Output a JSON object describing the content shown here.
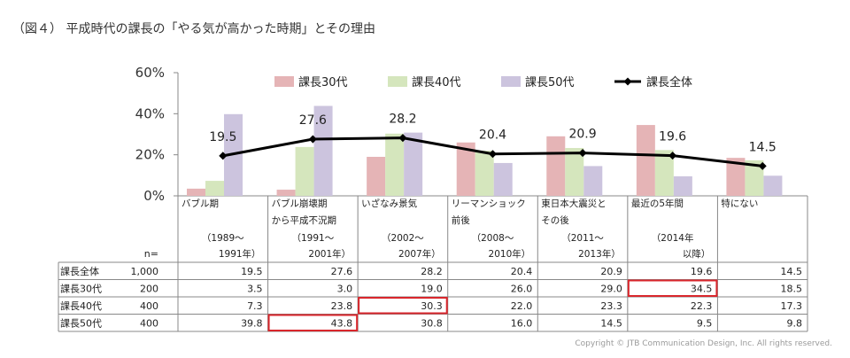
{
  "title": "（図４） 平成時代の課長の「やる気が高かった時期」とその理由",
  "copyright": "Copyright © JTB Communication Design, Inc. All rights reserved.",
  "chart_data": {
    "type": "bar",
    "overlay": "line",
    "ylim": [
      0,
      60
    ],
    "yticks": [
      "0%",
      "20%",
      "40%",
      "60%"
    ],
    "grid": false,
    "legend_position": "top",
    "n_label": "n=",
    "categories": [
      [
        "バブル期",
        "",
        "（1989～",
        "1991年）"
      ],
      [
        "バブル崩壊期",
        "から平成不況期",
        "（1991～",
        "2001年）"
      ],
      [
        "いざなみ景気",
        "",
        "（2002～",
        "2007年）"
      ],
      [
        "リーマンショック",
        "前後",
        "（2008～",
        "2010年）"
      ],
      [
        "東日本大震災と",
        "その後",
        "（2011～",
        "2013年）"
      ],
      [
        "最近の5年間",
        "",
        "（2014年",
        "以降）"
      ],
      [
        "特にない",
        "",
        "",
        ""
      ]
    ],
    "series": [
      {
        "name": "課長30代",
        "kind": "bar",
        "color": "#e5b4b6",
        "n": "200",
        "values": [
          3.5,
          3.0,
          19.0,
          26.0,
          29.0,
          34.5,
          18.5
        ],
        "labels": [
          "3.5",
          "3.0",
          "19.0",
          "26.0",
          "29.0",
          "34.5",
          "18.5"
        ]
      },
      {
        "name": "課長40代",
        "kind": "bar",
        "color": "#d5e6bd",
        "n": "400",
        "values": [
          7.3,
          23.8,
          30.3,
          22.0,
          23.3,
          22.3,
          17.3
        ],
        "labels": [
          "7.3",
          "23.8",
          "30.3",
          "22.0",
          "23.3",
          "22.3",
          "17.3"
        ]
      },
      {
        "name": "課長50代",
        "kind": "bar",
        "color": "#ccc4de",
        "n": "400",
        "values": [
          39.8,
          43.8,
          30.8,
          16.0,
          14.5,
          9.5,
          9.8
        ],
        "labels": [
          "39.8",
          "43.8",
          "30.8",
          "16.0",
          "14.5",
          "9.5",
          "9.8"
        ]
      },
      {
        "name": "課長全体",
        "kind": "line",
        "color": "#000000",
        "n": "1,000",
        "values": [
          19.5,
          27.6,
          28.2,
          20.4,
          20.9,
          19.6,
          14.5
        ],
        "labels": [
          "19.5",
          "27.6",
          "28.2",
          "20.4",
          "20.9",
          "19.6",
          "14.5"
        ]
      }
    ],
    "table_order": [
      "課長全体",
      "課長30代",
      "課長40代",
      "課長50代"
    ],
    "highlight_color": "#d9262c",
    "highlights": [
      {
        "series": "課長30代",
        "category_index": 5
      },
      {
        "series": "課長40代",
        "category_index": 2
      },
      {
        "series": "課長50代",
        "category_index": 1
      }
    ]
  }
}
